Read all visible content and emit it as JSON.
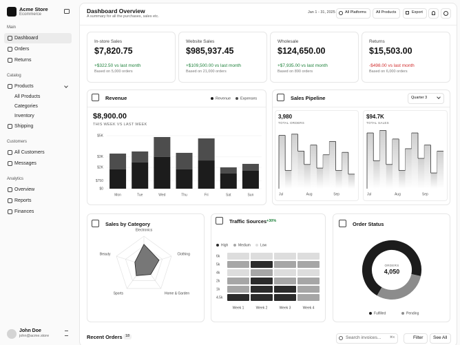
{
  "sidebar": {
    "store": "Acme Store",
    "store_subtitle": "Ecommerce",
    "sections": [
      {
        "title": "Main",
        "items": [
          {
            "label": "Dashboard"
          },
          {
            "label": "Orders"
          },
          {
            "label": "Returns"
          }
        ]
      },
      {
        "title": "Catalog",
        "items": [
          {
            "label": "Products",
            "children": [
              "All Products",
              "Categories",
              "Inventory"
            ]
          },
          {
            "label": "Shipping"
          }
        ]
      },
      {
        "title": "Customers",
        "items": [
          {
            "label": "All Customers"
          },
          {
            "label": "Messages"
          }
        ]
      },
      {
        "title": "Analytics",
        "items": [
          {
            "label": "Overview"
          },
          {
            "label": "Reports"
          },
          {
            "label": "Finances"
          }
        ]
      }
    ],
    "user": {
      "name": "John Doe",
      "email": "john@acme.store"
    }
  },
  "header": {
    "title": "Dashboard Overview",
    "subtitle": "A summary for all the purchases, sales etc.",
    "date_range": "Jan 1 - 31, 2025",
    "platforms": "All Platforms",
    "products": "All Products",
    "export": "Export"
  },
  "kpis": [
    {
      "label": "In-store Sales",
      "value": "$7,820.75",
      "change": "+$322.50 vs last month",
      "basis": "Based on 5,000 orders",
      "color": "#1a7f37"
    },
    {
      "label": "Website Sales",
      "value": "$985,937.45",
      "change": "+$109,500.00 vs last month",
      "basis": "Based on 21,000 orders",
      "color": "#1a7f37"
    },
    {
      "label": "Wholesale",
      "value": "$124,650.00",
      "change": "+$7,935.00 vs last month",
      "basis": "Based on 890 orders",
      "color": "#1a7f37"
    },
    {
      "label": "Returns",
      "value": "$15,503.00",
      "change": "-$498.00 vs last month",
      "basis": "Based on 6,000 orders",
      "color": "#d12b2b"
    }
  ],
  "chart_data": [
    {
      "type": "stacked-bar",
      "title": "Revenue",
      "total": "$8,900.00",
      "subtitle": "THIS WEEK VS LAST WEEK",
      "categories": [
        "Mon",
        "Tue",
        "Wed",
        "Thu",
        "Fri",
        "Sat",
        "Sun"
      ],
      "series": [
        {
          "name": "Revenue",
          "color": "#1c1c1c",
          "values": [
            1820,
            2470,
            2990,
            1820,
            2660,
            1430,
            1690
          ]
        },
        {
          "name": "Expenses",
          "color": "#4d4d4d",
          "values": [
            1490,
            1040,
            1880,
            1560,
            2080,
            580,
            650
          ]
        }
      ],
      "ylim": [
        0,
        5000
      ],
      "yticks": [
        {
          "value": 0,
          "label": "$0"
        },
        {
          "value": 750,
          "label": "$750"
        },
        {
          "value": 2000,
          "label": "$2K"
        },
        {
          "value": 3000,
          "label": "$3K"
        },
        {
          "value": 5000,
          "label": "$5K"
        }
      ],
      "grid": true
    },
    {
      "type": "step",
      "title": "Sales Pipeline",
      "period": "Quarter 3",
      "x_labels": [
        "Jul",
        "Aug",
        "Sep"
      ],
      "ylim": [
        0,
        100
      ],
      "series": [
        {
          "name": "TOTAL ORDERS",
          "total": "3,980",
          "color": "#333333",
          "values": [
            88,
            30,
            90,
            62,
            40,
            72,
            34,
            56,
            78,
            30,
            60,
            24
          ]
        },
        {
          "name": "TOTAL SALES",
          "total": "$94.7K",
          "color": "#333333",
          "values": [
            92,
            46,
            96,
            40,
            82,
            30,
            66,
            92,
            50,
            72,
            26,
            62
          ]
        }
      ]
    },
    {
      "type": "radar",
      "title": "Sales by Category",
      "categories": [
        "Electronics",
        "Clothing",
        "Home & Garden",
        "Sports",
        "Beauty"
      ],
      "values": [
        72,
        55,
        40,
        45,
        33
      ],
      "ylim": [
        0,
        100
      ],
      "color": "#777777"
    },
    {
      "type": "heatmap",
      "title": "Traffic Sources",
      "badge": "+30%",
      "levels": [
        {
          "name": "High",
          "color": "#2b2b2b"
        },
        {
          "name": "Medium",
          "color": "#a6a6a6"
        },
        {
          "name": "Low",
          "color": "#dddddd"
        }
      ],
      "rows": [
        "6k",
        "5k",
        "4k",
        "2k",
        "1k",
        "4.5k"
      ],
      "columns": [
        "Week 1",
        "Week 2",
        "Week 3",
        "Week 4"
      ],
      "values": [
        [
          1,
          1,
          1,
          1
        ],
        [
          2,
          3,
          2,
          2
        ],
        [
          1,
          2,
          1,
          1
        ],
        [
          2,
          3,
          2,
          2
        ],
        [
          2,
          3,
          3,
          2
        ],
        [
          3,
          3,
          3,
          2
        ]
      ]
    },
    {
      "type": "donut",
      "title": "Order Status",
      "center_label": "ORDERS",
      "center_value": "4,050",
      "categories": [
        "Fulfilled",
        "Pending"
      ],
      "values": [
        70,
        30
      ],
      "colors": [
        "#1c1c1c",
        "#8c8c8c"
      ]
    }
  ],
  "recent_orders": {
    "title": "Recent Orders",
    "count": 18,
    "search_placeholder": "Search invoices...",
    "shortcut": "⌘K",
    "filter": "Filter",
    "see_all": "See All"
  }
}
